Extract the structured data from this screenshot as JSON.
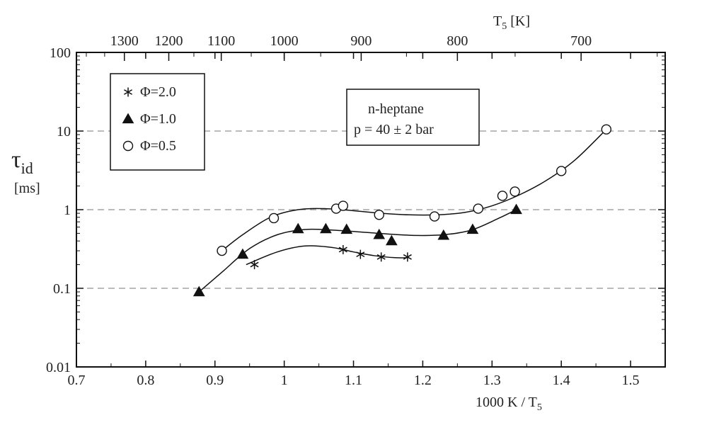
{
  "chart_data": {
    "type": "scatter",
    "title": "",
    "xlabel": "1000 K / T",
    "xlabel_sub": "5",
    "ylabel": "τ",
    "ylabel_sub": "id",
    "ylabel_unit": "[ms]",
    "top_axis_label": "T",
    "top_axis_label_sub": "5",
    "top_axis_label_unit": " [K]",
    "xlim": [
      0.7,
      1.55
    ],
    "ylim": [
      0.01,
      100
    ],
    "y_scale": "log",
    "x_ticks": [
      "0.7",
      "0.8",
      "0.9",
      "1",
      "1.1",
      "1.2",
      "1.3",
      "1.4",
      "1.5"
    ],
    "y_ticks": [
      "0.01",
      "0.1",
      "1",
      "10",
      "100"
    ],
    "top_ticks": [
      1300,
      1200,
      1100,
      1000,
      900,
      800,
      700
    ],
    "grid": "dashed horizontal at 0.1, 1, 10",
    "legend_position": "top-left",
    "annotation": [
      "n-heptane",
      "p = 40 ± 2 bar"
    ],
    "series": [
      {
        "name": "Φ=2.0",
        "marker": "asterisk",
        "x": [
          0.957,
          1.085,
          1.11,
          1.14,
          1.178
        ],
        "y": [
          0.2,
          0.31,
          0.27,
          0.25,
          0.25
        ],
        "fit": {
          "x": [
            0.945,
            0.99,
            1.03,
            1.07,
            1.1,
            1.13,
            1.16,
            1.178
          ],
          "y": [
            0.2,
            0.29,
            0.345,
            0.33,
            0.29,
            0.26,
            0.245,
            0.245
          ]
        }
      },
      {
        "name": "Φ=1.0",
        "marker": "triangle",
        "x": [
          0.877,
          0.94,
          1.02,
          1.06,
          1.09,
          1.137,
          1.155,
          1.23,
          1.272,
          1.335
        ],
        "y": [
          0.09,
          0.27,
          0.57,
          0.57,
          0.56,
          0.48,
          0.4,
          0.47,
          0.56,
          1.0
        ],
        "fit": {
          "x": [
            0.877,
            0.91,
            0.95,
            0.99,
            1.03,
            1.07,
            1.11,
            1.15,
            1.19,
            1.23,
            1.27,
            1.31,
            1.335
          ],
          "y": [
            0.09,
            0.16,
            0.32,
            0.48,
            0.56,
            0.55,
            0.52,
            0.49,
            0.47,
            0.48,
            0.55,
            0.78,
            1.0
          ]
        }
      },
      {
        "name": "Φ=0.5",
        "marker": "circle",
        "x": [
          0.91,
          0.985,
          1.075,
          1.085,
          1.137,
          1.217,
          1.28,
          1.315,
          1.333,
          1.4,
          1.465
        ],
        "y": [
          0.3,
          0.78,
          1.03,
          1.12,
          0.86,
          0.82,
          1.03,
          1.5,
          1.7,
          3.1,
          10.5
        ],
        "fit": {
          "x": [
            0.91,
            0.94,
            0.98,
            1.02,
            1.06,
            1.1,
            1.14,
            1.18,
            1.22,
            1.26,
            1.3,
            1.34,
            1.38,
            1.42,
            1.465
          ],
          "y": [
            0.3,
            0.48,
            0.8,
            1.0,
            1.03,
            0.97,
            0.9,
            0.86,
            0.86,
            0.92,
            1.12,
            1.55,
            2.4,
            4.3,
            10.5
          ]
        }
      }
    ]
  }
}
